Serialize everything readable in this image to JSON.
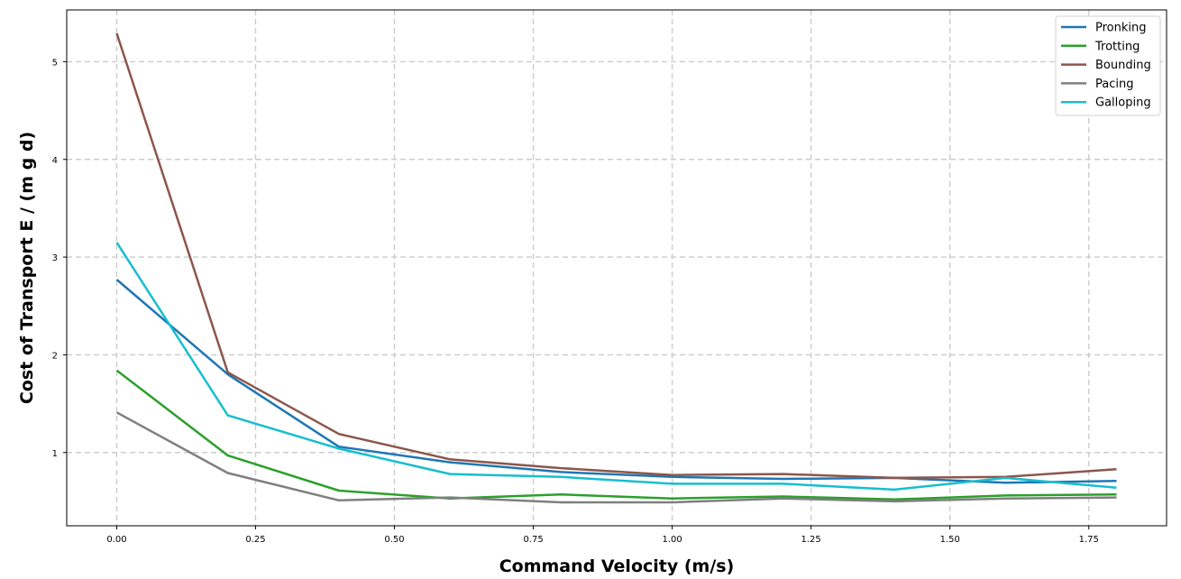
{
  "chart_data": {
    "type": "line",
    "title": "",
    "xlabel": "Command Velocity (m/s)",
    "ylabel": "Cost of Transport E / (m g d)",
    "x": [
      0.0,
      0.2,
      0.4,
      0.6,
      0.8,
      1.0,
      1.2,
      1.4,
      1.6,
      1.8
    ],
    "xlim": [
      -0.09,
      1.89
    ],
    "ylim": [
      0.25,
      5.53
    ],
    "xticks": [
      "0.00",
      "0.25",
      "0.50",
      "0.75",
      "1.00",
      "1.25",
      "1.50",
      "1.75"
    ],
    "yticks": [
      "1",
      "2",
      "3",
      "4",
      "5"
    ],
    "grid": true,
    "legend_position": "top-right",
    "series": [
      {
        "name": "Pronking",
        "color": "#1f77b4",
        "values": [
          2.77,
          1.8,
          1.06,
          0.9,
          0.8,
          0.75,
          0.73,
          0.74,
          0.69,
          0.71
        ]
      },
      {
        "name": "Trotting",
        "color": "#2ca02c",
        "values": [
          1.84,
          0.97,
          0.61,
          0.53,
          0.57,
          0.53,
          0.55,
          0.52,
          0.56,
          0.57
        ]
      },
      {
        "name": "Bounding",
        "color": "#8c564b",
        "values": [
          5.29,
          1.82,
          1.19,
          0.93,
          0.84,
          0.77,
          0.78,
          0.74,
          0.75,
          0.83
        ]
      },
      {
        "name": "Pacing",
        "color": "#7f7f7f",
        "values": [
          1.41,
          0.79,
          0.51,
          0.54,
          0.49,
          0.49,
          0.53,
          0.5,
          0.53,
          0.54
        ]
      },
      {
        "name": "Galloping",
        "color": "#17becf",
        "values": [
          3.15,
          1.38,
          1.04,
          0.78,
          0.75,
          0.68,
          0.68,
          0.62,
          0.74,
          0.64
        ]
      }
    ]
  }
}
